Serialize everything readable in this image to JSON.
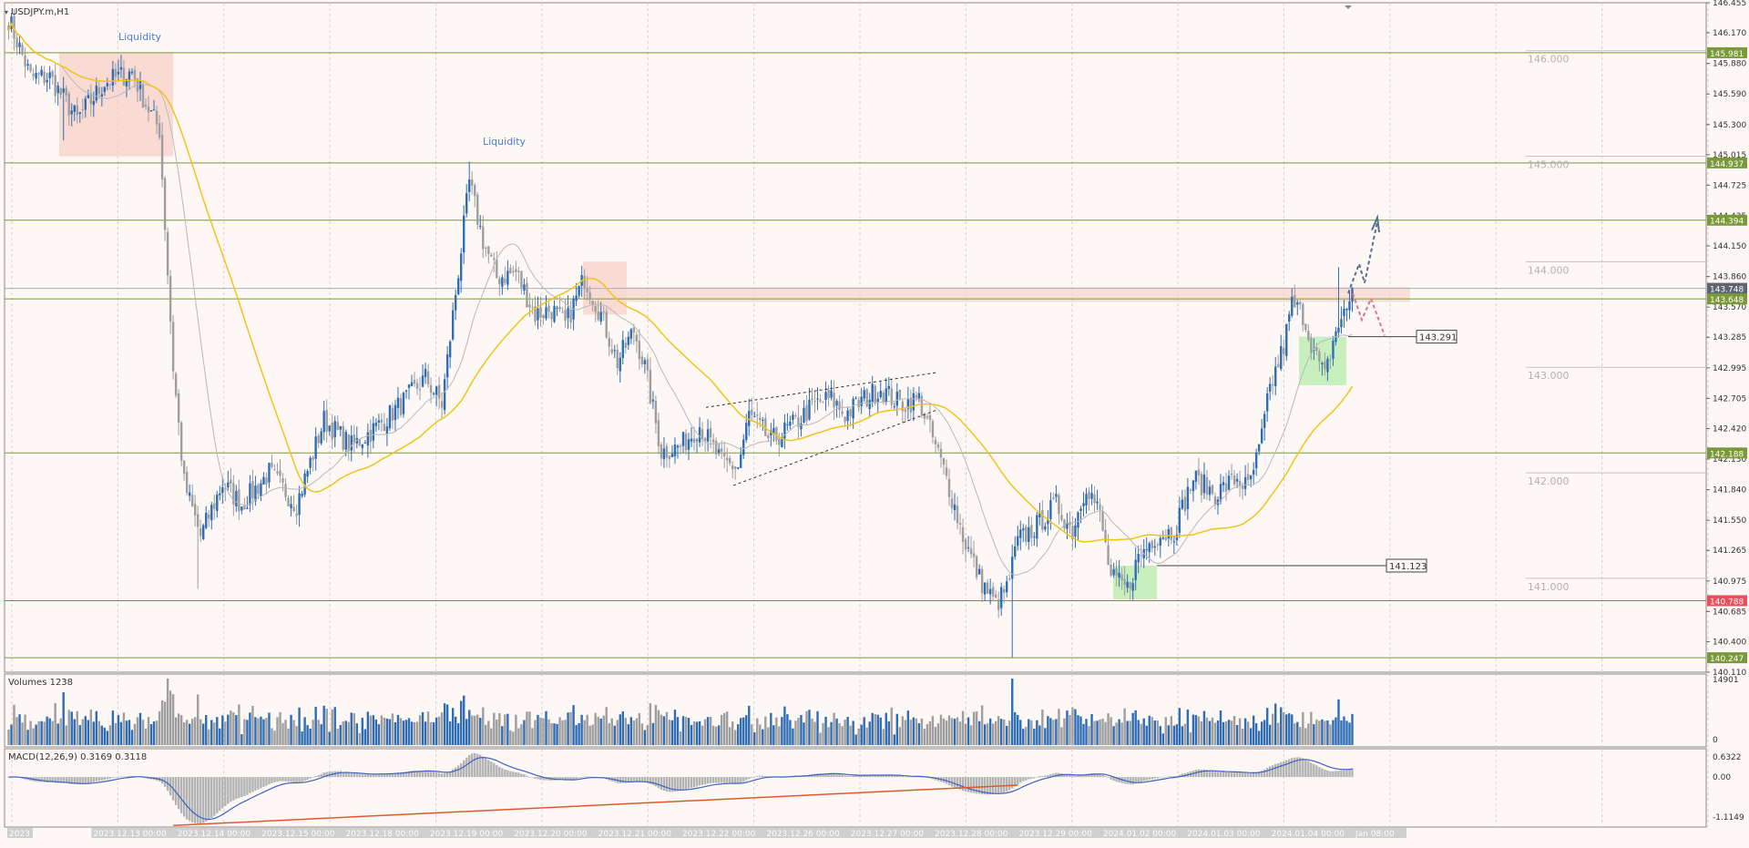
{
  "symbol_title": "USDJPY.m,H1",
  "colors": {
    "background": "#fdf7f6",
    "bull_candle": "#2e6db4",
    "bear_candle": "#9e9e9e",
    "ma_fast": "#b9b9b9",
    "ma_slow": "#f0c419",
    "level_green": "#7a9a3a",
    "level_red": "#e8505b",
    "zone_red": "#f7cfc4",
    "zone_green": "#b9eeb0",
    "macd_line": "#3b63c4",
    "macd_hist": "#b3b3b3",
    "divergence": "#e4572e",
    "arrow_up": "#5a6f8c",
    "arrow_down": "#e87088"
  },
  "annotations": {
    "liquidity_1": "Liquidity",
    "liquidity_2": "Liquidity",
    "target_label_1": "143.291",
    "target_label_2": "141.123"
  },
  "chart_data": [
    {
      "type": "candlestick",
      "title": "USDJPY.m,H1",
      "ylim": [
        140.11,
        146.455
      ],
      "y_ticks": [
        "146.455",
        "146.170",
        "145.880",
        "145.590",
        "145.300",
        "145.015",
        "144.725",
        "144.435",
        "144.150",
        "143.860",
        "143.570",
        "143.285",
        "142.995",
        "142.705",
        "142.420",
        "142.130",
        "141.840",
        "141.550",
        "141.265",
        "140.975",
        "140.685",
        "140.400",
        "140.110"
      ],
      "round_levels": [
        {
          "value": 146.0,
          "label": "146.000"
        },
        {
          "value": 145.0,
          "label": "145.000"
        },
        {
          "value": 144.0,
          "label": "144.000"
        },
        {
          "value": 143.0,
          "label": "143.000"
        },
        {
          "value": 142.0,
          "label": "142.000"
        },
        {
          "value": 141.0,
          "label": "141.000"
        }
      ],
      "levels": [
        {
          "value": 145.981,
          "label": "145.981",
          "color": "green"
        },
        {
          "value": 144.937,
          "label": "144.937",
          "color": "green"
        },
        {
          "value": 144.394,
          "label": "144.394",
          "color": "green"
        },
        {
          "value": 143.748,
          "label": "143.748",
          "color": "gray"
        },
        {
          "value": 143.648,
          "label": "143.648",
          "color": "green"
        },
        {
          "value": 142.188,
          "label": "142.188",
          "color": "green"
        },
        {
          "value": 140.788,
          "label": "140.788",
          "color": "red"
        },
        {
          "value": 140.247,
          "label": "140.247",
          "color": "green"
        }
      ],
      "x_labels": [
        "2023",
        "2023.12.13 00:00",
        "2023.12.14 00:00",
        "2023.12.15 00:00",
        "2023.12.18 00:00",
        "2023.12.19 00:00",
        "2023.12.20 00:00",
        "2023.12.21 00:00",
        "2023.12.22 00:00",
        "2023.12.26 00:00",
        "2023.12.27 00:00",
        "2023.12.28 00:00",
        "2023.12.29 00:00",
        "2024.01.02 00:00",
        "2024.01.03 00:00",
        "2024.01.04 00:00",
        "Jan 08:00"
      ],
      "anchors": [
        [
          0,
          146.3
        ],
        [
          8,
          145.75
        ],
        [
          15,
          145.75
        ],
        [
          25,
          145.35
        ],
        [
          35,
          145.7
        ],
        [
          45,
          145.8
        ],
        [
          50,
          145.5
        ],
        [
          55,
          145.25
        ],
        [
          60,
          143.0
        ],
        [
          64,
          141.9
        ],
        [
          70,
          141.4
        ],
        [
          78,
          141.9
        ],
        [
          85,
          141.7
        ],
        [
          95,
          142.0
        ],
        [
          105,
          141.7
        ],
        [
          115,
          142.5
        ],
        [
          125,
          142.25
        ],
        [
          135,
          142.45
        ],
        [
          145,
          142.7
        ],
        [
          152,
          142.9
        ],
        [
          158,
          142.65
        ],
        [
          163,
          143.7
        ],
        [
          168,
          144.75
        ],
        [
          173,
          144.2
        ],
        [
          178,
          143.85
        ],
        [
          185,
          143.9
        ],
        [
          192,
          143.5
        ],
        [
          198,
          143.55
        ],
        [
          203,
          143.4
        ],
        [
          210,
          143.85
        ],
        [
          216,
          143.5
        ],
        [
          222,
          143.05
        ],
        [
          228,
          143.35
        ],
        [
          232,
          143.0
        ],
        [
          238,
          142.2
        ],
        [
          245,
          142.25
        ],
        [
          252,
          142.45
        ],
        [
          260,
          142.1
        ],
        [
          266,
          142.05
        ],
        [
          270,
          142.55
        ],
        [
          278,
          142.3
        ],
        [
          286,
          142.45
        ],
        [
          294,
          142.65
        ],
        [
          300,
          142.7
        ],
        [
          305,
          142.55
        ],
        [
          312,
          142.7
        ],
        [
          318,
          142.8
        ],
        [
          325,
          142.65
        ],
        [
          332,
          142.7
        ],
        [
          336,
          142.4
        ],
        [
          342,
          141.95
        ],
        [
          348,
          141.4
        ],
        [
          354,
          141.0
        ],
        [
          360,
          140.75
        ],
        [
          364,
          140.9
        ],
        [
          368,
          141.35
        ],
        [
          375,
          141.5
        ],
        [
          382,
          141.7
        ],
        [
          388,
          141.45
        ],
        [
          393,
          141.9
        ],
        [
          398,
          141.6
        ],
        [
          402,
          141.0
        ],
        [
          408,
          140.9
        ],
        [
          412,
          141.2
        ],
        [
          418,
          141.4
        ],
        [
          425,
          141.45
        ],
        [
          432,
          141.95
        ],
        [
          440,
          141.8
        ],
        [
          448,
          141.95
        ],
        [
          452,
          141.85
        ],
        [
          456,
          142.2
        ],
        [
          460,
          142.8
        ],
        [
          465,
          143.2
        ],
        [
          468,
          143.6
        ],
        [
          472,
          143.5
        ],
        [
          476,
          143.15
        ],
        [
          480,
          142.9
        ],
        [
          484,
          143.35
        ],
        [
          488,
          143.55
        ],
        [
          490,
          143.75
        ]
      ],
      "candle_count": 491,
      "sma_fast_period": 20,
      "sma_slow_period": 50
    },
    {
      "type": "bar",
      "title": "Volumes 1238",
      "ylim": [
        0,
        14901
      ],
      "y_ticks": [
        "14901",
        "0"
      ]
    },
    {
      "type": "line",
      "title": "MACD(12,26,9) 0.3169 0.3118",
      "ylim": [
        -1.1149,
        0.6322
      ],
      "y_ticks": [
        "0.6322",
        "0.00",
        "-1.1149"
      ]
    }
  ]
}
